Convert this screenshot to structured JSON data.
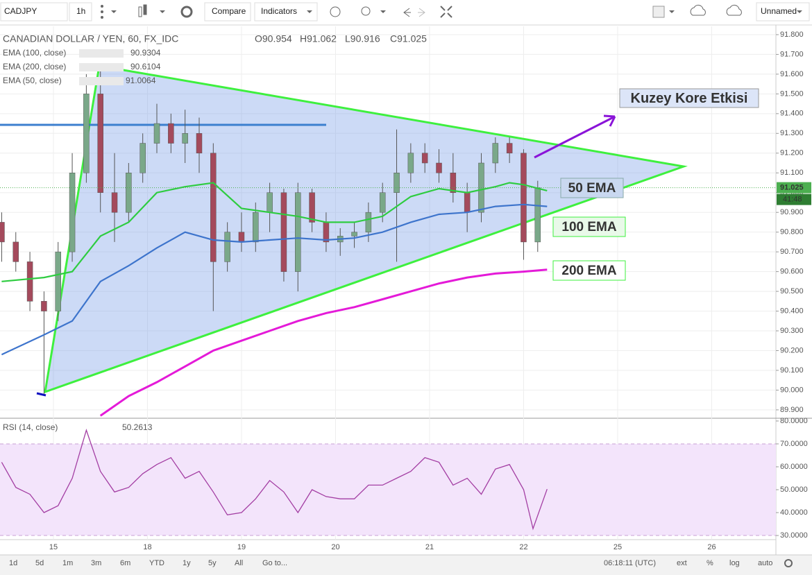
{
  "toolbar": {
    "symbol": "CADJPY",
    "interval": "1h",
    "compare": "Compare",
    "indicators": "Indicators",
    "layout": "Unnamed"
  },
  "bottom_bar": {
    "ranges": [
      "1d",
      "5d",
      "1m",
      "3m",
      "6m",
      "YTD",
      "1y",
      "5y",
      "All",
      "Go to..."
    ],
    "time": "06:18:11 (UTC)",
    "options": [
      "ext",
      "%",
      "log",
      "auto"
    ]
  },
  "chart_data": [
    {
      "type": "candlestick",
      "title": "CANADIAN DOLLAR / YEN, 60, FX_IDC",
      "ohlc_text": [
        "O90.954",
        "H91.062",
        "L90.916",
        "C91.025"
      ],
      "xlim": [
        -0.568,
        7.683
      ],
      "ylim": [
        89.868,
        91.842
      ],
      "yticks": [
        {
          "value": 89.9,
          "label": "89.900"
        },
        {
          "value": 90.0,
          "label": "90.000"
        },
        {
          "value": 90.1,
          "label": "90.100"
        },
        {
          "value": 90.2,
          "label": "90.200"
        },
        {
          "value": 90.3,
          "label": "90.300"
        },
        {
          "value": 90.4,
          "label": "90.400"
        },
        {
          "value": 90.5,
          "label": "90.500"
        },
        {
          "value": 90.6,
          "label": "90.600"
        },
        {
          "value": 90.7,
          "label": "90.700"
        },
        {
          "value": 90.8,
          "label": "90.800"
        },
        {
          "value": 90.9,
          "label": "90.900"
        },
        {
          "value": 91.0,
          "label": "91.000"
        },
        {
          "value": 91.1,
          "label": "91.100"
        },
        {
          "value": 91.2,
          "label": "91.200"
        },
        {
          "value": 91.3,
          "label": "91.300"
        },
        {
          "value": 91.4,
          "label": "91.400"
        },
        {
          "value": 91.5,
          "label": "91.500"
        },
        {
          "value": 91.6,
          "label": "91.600"
        },
        {
          "value": 91.7,
          "label": "91.700"
        },
        {
          "value": 91.8,
          "label": "91.800"
        }
      ],
      "grid": true,
      "last_price": 91.025,
      "countdown": "41:48",
      "candles": {
        "up_color": "#7aa889",
        "down_color": "#a44a5c",
        "x": [
          -0.55,
          -0.4,
          -0.25,
          -0.1,
          0.05,
          0.2,
          0.35,
          0.5,
          0.65,
          0.8,
          0.95,
          1.1,
          1.25,
          1.4,
          1.55,
          1.7,
          1.85,
          2.0,
          2.15,
          2.3,
          2.45,
          2.6,
          2.75,
          2.9,
          3.05,
          3.2,
          3.35,
          3.5,
          3.65,
          3.8,
          3.95,
          4.1,
          4.25,
          4.4,
          4.55,
          4.7,
          4.85,
          5.0,
          5.15
        ],
        "open": [
          90.85,
          90.75,
          90.65,
          90.45,
          90.4,
          90.7,
          91.1,
          91.5,
          91.0,
          90.9,
          91.1,
          91.25,
          91.35,
          91.25,
          91.3,
          91.2,
          90.65,
          90.8,
          90.75,
          90.9,
          91.0,
          90.6,
          91.0,
          90.85,
          90.75,
          90.78,
          90.8,
          90.9,
          91.0,
          91.1,
          91.2,
          91.15,
          91.1,
          91.0,
          90.9,
          91.15,
          91.25,
          91.2,
          90.75
        ],
        "high": [
          90.9,
          90.8,
          90.7,
          90.5,
          90.75,
          91.2,
          91.6,
          91.64,
          91.2,
          91.15,
          91.3,
          91.45,
          91.4,
          91.42,
          91.38,
          91.25,
          90.85,
          90.9,
          90.95,
          91.05,
          91.02,
          91.05,
          91.02,
          90.9,
          90.82,
          90.85,
          90.95,
          91.05,
          91.32,
          91.25,
          91.25,
          91.22,
          91.2,
          91.05,
          91.2,
          91.28,
          91.28,
          91.22,
          91.06
        ],
        "low": [
          90.65,
          90.6,
          90.4,
          89.98,
          90.35,
          90.65,
          91.05,
          90.9,
          90.75,
          90.85,
          91.05,
          91.2,
          91.2,
          91.15,
          91.1,
          90.4,
          90.6,
          90.7,
          90.7,
          90.8,
          90.55,
          90.5,
          90.8,
          90.7,
          90.68,
          90.72,
          90.75,
          90.85,
          90.65,
          91.05,
          91.1,
          91.05,
          90.95,
          90.8,
          90.85,
          91.1,
          91.15,
          90.66,
          90.7
        ],
        "close": [
          90.75,
          90.65,
          90.45,
          90.4,
          90.7,
          91.1,
          91.5,
          91.0,
          90.9,
          91.1,
          91.25,
          91.35,
          91.25,
          91.3,
          91.2,
          90.65,
          90.8,
          90.75,
          90.9,
          91.0,
          90.6,
          91.0,
          90.85,
          90.75,
          90.78,
          90.8,
          90.9,
          91.0,
          91.1,
          91.2,
          91.15,
          91.1,
          91.0,
          90.9,
          91.15,
          91.25,
          91.2,
          90.75,
          91.025
        ]
      },
      "series": [
        {
          "name": "EMA (100, close)",
          "color": "#3d74cc",
          "last": 90.9304,
          "x": [
            -0.55,
            -0.1,
            0.2,
            0.5,
            0.8,
            1.1,
            1.4,
            1.7,
            2.0,
            2.3,
            2.6,
            2.9,
            3.2,
            3.5,
            3.8,
            4.1,
            4.4,
            4.7,
            5.0,
            5.25
          ],
          "values": [
            90.18,
            90.28,
            90.35,
            90.55,
            90.63,
            90.72,
            90.8,
            90.76,
            90.75,
            90.76,
            90.77,
            90.76,
            90.77,
            90.8,
            90.85,
            90.89,
            90.9,
            90.93,
            90.94,
            90.93
          ]
        },
        {
          "name": "EMA (200, close)",
          "color": "#e41ad8",
          "last": 90.6104,
          "x": [
            0.5,
            0.8,
            1.1,
            1.4,
            1.7,
            2.0,
            2.3,
            2.6,
            2.9,
            3.2,
            3.5,
            3.8,
            4.1,
            4.4,
            4.7,
            5.0,
            5.25
          ],
          "values": [
            89.87,
            89.97,
            90.04,
            90.12,
            90.2,
            90.25,
            90.3,
            90.35,
            90.39,
            90.42,
            90.46,
            90.5,
            90.54,
            90.57,
            90.59,
            90.6,
            90.61
          ]
        },
        {
          "name": "EMA (50, close)",
          "color": "#2ecc40",
          "last": 91.0064,
          "x": [
            -0.55,
            -0.1,
            0.2,
            0.5,
            0.8,
            1.1,
            1.4,
            1.7,
            2.0,
            2.3,
            2.6,
            2.9,
            3.2,
            3.5,
            3.8,
            4.1,
            4.4,
            4.7,
            4.85,
            5.0,
            5.25
          ],
          "values": [
            90.55,
            90.57,
            90.6,
            90.78,
            90.85,
            91.0,
            91.03,
            91.05,
            90.92,
            90.9,
            90.88,
            90.85,
            90.85,
            90.88,
            90.98,
            91.02,
            91.0,
            91.03,
            91.05,
            91.04,
            91.01
          ]
        }
      ],
      "annotations": [
        {
          "text": "Kuzey Kore Etkisi",
          "color": "#8a14d8"
        },
        {
          "text": "50 EMA",
          "color": "#36d236"
        },
        {
          "text": "100 EMA",
          "color": "#4a84d8"
        },
        {
          "text": "200 EMA",
          "color": "#e214d0"
        }
      ]
    },
    {
      "type": "line",
      "title": "RSI (14, close)",
      "last": 50.2613,
      "color": "#a33ea3",
      "band": [
        30,
        70
      ],
      "xlim": [
        -0.568,
        7.683
      ],
      "ylim": [
        28.2,
        81.2
      ],
      "xticks": [
        {
          "value": 0,
          "label": "15"
        },
        {
          "value": 1,
          "label": "18"
        },
        {
          "value": 2,
          "label": "19"
        },
        {
          "value": 3,
          "label": "20"
        },
        {
          "value": 4,
          "label": "21"
        },
        {
          "value": 5,
          "label": "22"
        },
        {
          "value": 6,
          "label": "25"
        },
        {
          "value": 7,
          "label": "26"
        }
      ],
      "yticks": [
        {
          "value": 30,
          "label": "30.0000"
        },
        {
          "value": 40,
          "label": "40.0000"
        },
        {
          "value": 50,
          "label": "50.0000"
        },
        {
          "value": 60,
          "label": "60.0000"
        },
        {
          "value": 70,
          "label": "70.0000"
        },
        {
          "value": 80,
          "label": "80.0000"
        }
      ],
      "x": [
        -0.55,
        -0.4,
        -0.25,
        -0.1,
        0.05,
        0.2,
        0.35,
        0.5,
        0.65,
        0.8,
        0.95,
        1.1,
        1.25,
        1.4,
        1.55,
        1.7,
        1.85,
        2.0,
        2.15,
        2.3,
        2.45,
        2.6,
        2.75,
        2.9,
        3.05,
        3.2,
        3.35,
        3.5,
        3.65,
        3.8,
        3.95,
        4.1,
        4.25,
        4.4,
        4.55,
        4.7,
        4.85,
        5.0,
        5.1,
        5.25
      ],
      "values": [
        62,
        51,
        48,
        40,
        43,
        55,
        76,
        58,
        49,
        51,
        57,
        61,
        64,
        55,
        58,
        49,
        39,
        40,
        46,
        54,
        49,
        40,
        50,
        47,
        46,
        46,
        52,
        52,
        55,
        58,
        64,
        62,
        52,
        55,
        48,
        59,
        61,
        50,
        33,
        50.2613
      ]
    }
  ]
}
